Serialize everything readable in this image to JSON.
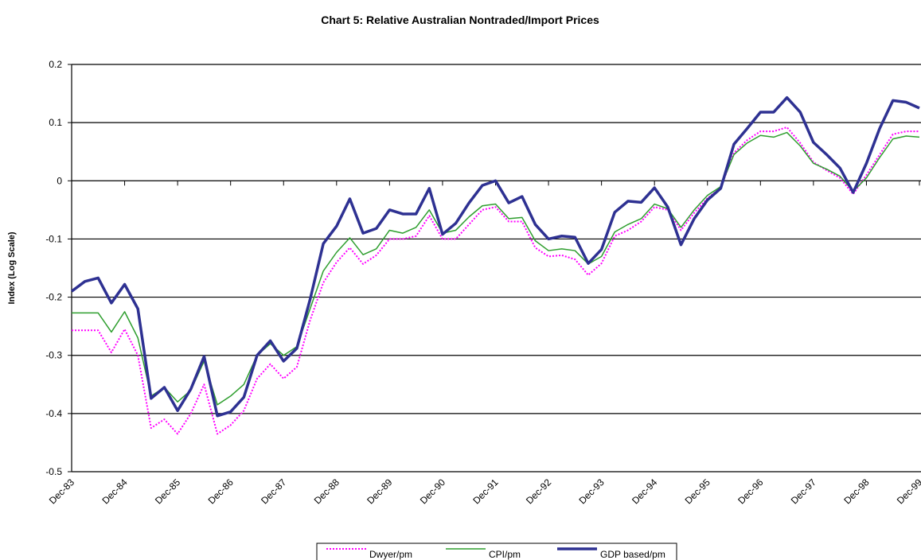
{
  "chart_data": {
    "type": "line",
    "title": "Chart 5: Relative Australian Nontraded/Import Prices",
    "y_label": "Index (Log Scale)",
    "categories": [
      "Dec-83",
      null,
      null,
      null,
      "Dec-84",
      null,
      null,
      null,
      "Dec-85",
      null,
      null,
      null,
      "Dec-86",
      null,
      null,
      null,
      "Dec-87",
      null,
      null,
      null,
      "Dec-88",
      null,
      null,
      null,
      "Dec-89",
      null,
      null,
      null,
      "Dec-90",
      null,
      null,
      null,
      "Dec-91",
      null,
      null,
      null,
      "Dec-92",
      null,
      null,
      null,
      "Dec-93",
      null,
      null,
      null,
      "Dec-94",
      null,
      null,
      null,
      "Dec-95",
      null,
      null,
      null,
      "Dec-96",
      null,
      null,
      null,
      "Dec-97",
      null,
      null,
      null,
      "Dec-98",
      null,
      null,
      null,
      "Dec-99"
    ],
    "series": [
      {
        "name": "Dwyer/pm",
        "color": "#ff00ff",
        "line_style": "dotted",
        "values": [
          -0.257,
          -0.257,
          -0.257,
          -0.295,
          -0.255,
          -0.3,
          -0.425,
          -0.41,
          -0.435,
          -0.4,
          -0.35,
          -0.435,
          -0.42,
          -0.395,
          -0.34,
          -0.315,
          -0.34,
          -0.32,
          -0.24,
          -0.175,
          -0.14,
          -0.115,
          -0.143,
          -0.128,
          -0.1,
          -0.1,
          -0.095,
          -0.06,
          -0.1,
          -0.1,
          -0.075,
          -0.05,
          -0.045,
          -0.07,
          -0.07,
          -0.115,
          -0.13,
          -0.128,
          -0.135,
          -0.162,
          -0.142,
          -0.095,
          -0.085,
          -0.07,
          -0.045,
          -0.05,
          -0.085,
          -0.055,
          -0.03,
          -0.012,
          0.048,
          0.07,
          0.085,
          0.085,
          0.092,
          0.065,
          0.032,
          0.018,
          0.005,
          -0.023,
          0.01,
          0.045,
          0.08,
          0.085,
          0.085
        ]
      },
      {
        "name": "CPI/pm",
        "color": "#2e9e2e",
        "line_style": "solid",
        "values": [
          -0.227,
          -0.227,
          -0.227,
          -0.26,
          -0.225,
          -0.27,
          -0.37,
          -0.355,
          -0.38,
          -0.36,
          -0.31,
          -0.385,
          -0.37,
          -0.35,
          -0.3,
          -0.28,
          -0.3,
          -0.285,
          -0.22,
          -0.155,
          -0.123,
          -0.098,
          -0.127,
          -0.117,
          -0.085,
          -0.09,
          -0.08,
          -0.05,
          -0.09,
          -0.085,
          -0.062,
          -0.043,
          -0.04,
          -0.065,
          -0.063,
          -0.103,
          -0.12,
          -0.117,
          -0.12,
          -0.143,
          -0.13,
          -0.088,
          -0.075,
          -0.065,
          -0.04,
          -0.048,
          -0.08,
          -0.05,
          -0.025,
          -0.01,
          0.045,
          0.065,
          0.078,
          0.075,
          0.083,
          0.06,
          0.03,
          0.02,
          0.008,
          -0.018,
          0.005,
          0.04,
          0.072,
          0.077,
          0.075
        ]
      },
      {
        "name": "GDP based/pm",
        "color": "#2e3192",
        "line_style": "bold",
        "values": [
          -0.19,
          -0.173,
          -0.167,
          -0.21,
          -0.178,
          -0.22,
          -0.374,
          -0.355,
          -0.395,
          -0.358,
          -0.302,
          -0.404,
          -0.397,
          -0.372,
          -0.3,
          -0.275,
          -0.31,
          -0.288,
          -0.204,
          -0.108,
          -0.078,
          -0.031,
          -0.09,
          -0.082,
          -0.05,
          -0.057,
          -0.057,
          -0.013,
          -0.092,
          -0.073,
          -0.038,
          -0.008,
          0.0,
          -0.038,
          -0.027,
          -0.075,
          -0.1,
          -0.095,
          -0.097,
          -0.142,
          -0.118,
          -0.054,
          -0.035,
          -0.037,
          -0.012,
          -0.045,
          -0.11,
          -0.065,
          -0.033,
          -0.013,
          0.063,
          0.09,
          0.118,
          0.118,
          0.143,
          0.118,
          0.066,
          0.045,
          0.022,
          -0.02,
          0.03,
          0.09,
          0.138,
          0.135,
          0.125
        ]
      }
    ],
    "ylim": [
      -0.5,
      0.2
    ],
    "yticks": [
      0.2,
      0.1,
      0,
      -0.1,
      -0.2,
      -0.3,
      -0.4,
      -0.5
    ],
    "grid": true,
    "legend": "bottom"
  }
}
